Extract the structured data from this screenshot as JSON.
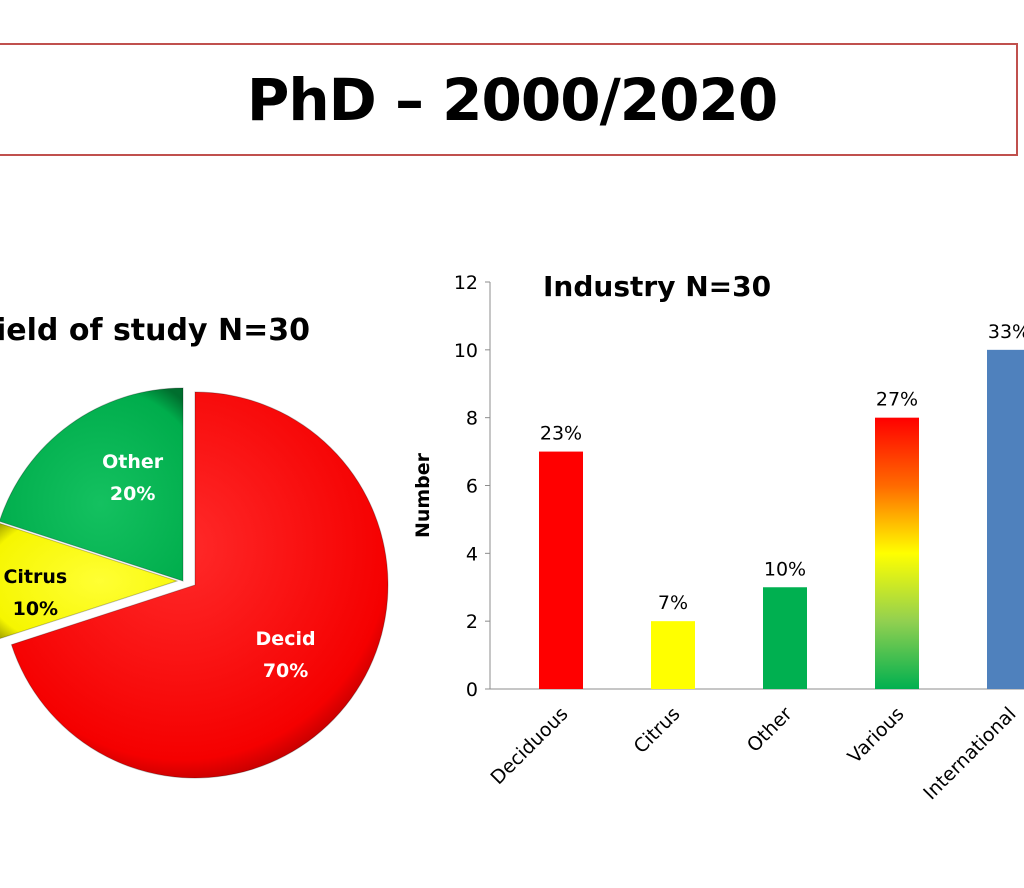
{
  "page_title": "PhD – 2000/2020",
  "colors": {
    "title_border": "#c0504d",
    "decid": "#ff0000",
    "citrus": "#ffff00",
    "other": "#00b050",
    "international": "#4f81bd"
  },
  "chart_data": [
    {
      "type": "pie",
      "title": "ield of study N=30",
      "slices": [
        {
          "label": "Decid",
          "pct_label": "70%",
          "value": 70,
          "color": "#ff0000"
        },
        {
          "label": "Citrus",
          "pct_label": "10%",
          "value": 10,
          "color": "#ffff00"
        },
        {
          "label": "Other",
          "pct_label": "20%",
          "value": 20,
          "color": "#00b050"
        }
      ]
    },
    {
      "type": "bar",
      "title": "Industry N=30",
      "ylabel": "Number",
      "xlabel": "",
      "ylim": [
        0,
        12
      ],
      "yticks": [
        0,
        2,
        4,
        6,
        8,
        10,
        12
      ],
      "grid": false,
      "categories": [
        "Deciduous",
        "Citrus",
        "Other",
        "Various",
        "International"
      ],
      "values": [
        7,
        2,
        3,
        8,
        10
      ],
      "data_labels": [
        "23%",
        "7%",
        "10%",
        "27%",
        "33%"
      ],
      "colors": [
        "#ff0000",
        "#ffff00",
        "#00b050",
        "gradient:red-yellow-green",
        "#4f81bd"
      ]
    }
  ]
}
